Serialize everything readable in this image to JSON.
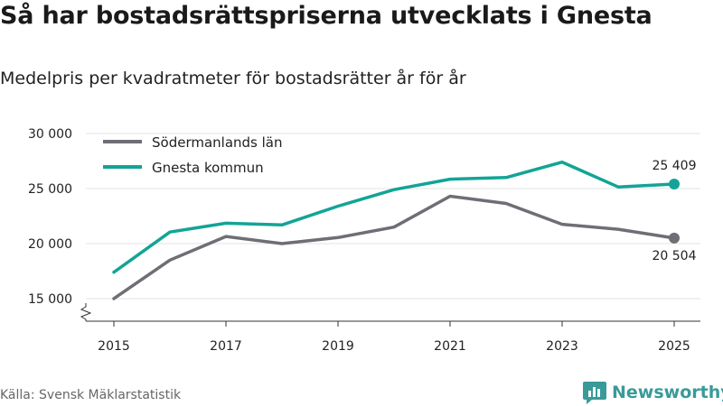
{
  "header": {
    "title": "Så har bostadsrättspriserna utvecklats i Gnesta",
    "subtitle": "Medelpris per kvadratmeter för bostadsrätter år för år"
  },
  "footer": {
    "source": "Källa: Svensk Mäklarstatistik",
    "brand": "Newsworthy"
  },
  "colors": {
    "sodermanland": "#6e6e75",
    "gnesta": "#12a497",
    "brand": "#3a9a99"
  },
  "chart_data": {
    "type": "line",
    "title": "Så har bostadsrättspriserna utvecklats i Gnesta",
    "subtitle": "Medelpris per kvadratmeter för bostadsrätter år för år",
    "xlabel": "",
    "ylabel": "",
    "x": [
      2015,
      2016,
      2017,
      2018,
      2019,
      2020,
      2021,
      2022,
      2023,
      2024,
      2025
    ],
    "x_ticks": [
      "2015",
      "2017",
      "2019",
      "2021",
      "2023",
      "2025"
    ],
    "y_ticks": [
      "15 000",
      "20 000",
      "25 000",
      "30 000"
    ],
    "y_tick_values": [
      15000,
      20000,
      25000,
      30000
    ],
    "ylim": [
      15000,
      30000
    ],
    "xlim": [
      2015,
      2025
    ],
    "legend_position": "top-left",
    "series": [
      {
        "name": "Södermanlands län",
        "color": "#6e6e75",
        "values": [
          15000,
          18500,
          20650,
          20000,
          20550,
          21500,
          24300,
          23650,
          21750,
          21300,
          20504
        ],
        "end_label": "20 504"
      },
      {
        "name": "Gnesta kommun",
        "color": "#12a497",
        "values": [
          17400,
          21050,
          21850,
          21700,
          23400,
          24900,
          25850,
          26000,
          27400,
          25150,
          25409
        ],
        "end_label": "25 409"
      }
    ]
  }
}
